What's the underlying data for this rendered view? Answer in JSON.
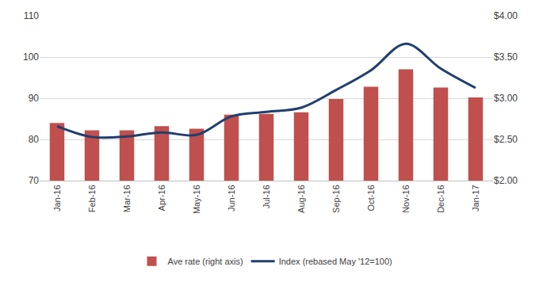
{
  "chart_data": {
    "type": "bar",
    "categories": [
      "Jan-16",
      "Feb-16",
      "Mar-16",
      "Apr-16",
      "May-16",
      "Jun-16",
      "Jul-16",
      "Aug-16",
      "Sep-16",
      "Oct-16",
      "Nov-16",
      "Dec-16",
      "Jan-17"
    ],
    "series": [
      {
        "name": "Ave rate (right axis)",
        "type": "bar",
        "axis": "y2",
        "color": "#c0504d",
        "values": [
          2.7,
          2.61,
          2.61,
          2.66,
          2.63,
          2.8,
          2.81,
          2.83,
          2.99,
          3.14,
          3.35,
          3.13,
          3.01
        ]
      },
      {
        "name": "Index (rebased May '12=100)",
        "type": "line",
        "line_style": "smooth",
        "color": "#1f3f6e",
        "values": [
          83.2,
          80.6,
          80.7,
          81.7,
          81.1,
          85.6,
          86.7,
          87.7,
          92.0,
          96.8,
          103.2,
          97.2,
          92.5
        ]
      }
    ],
    "ylim": [
      70,
      110
    ],
    "yticks": [
      70,
      80,
      90,
      100,
      110
    ],
    "y2lim": [
      2.0,
      4.0
    ],
    "y2ticks": [
      {
        "value": 2.0,
        "label": "$2.00"
      },
      {
        "value": 2.5,
        "label": "$2.50"
      },
      {
        "value": 3.0,
        "label": "$3.00"
      },
      {
        "value": 3.5,
        "label": "$3.50"
      },
      {
        "value": 4.0,
        "label": "$4.00"
      }
    ],
    "grid": true,
    "legend": "bottom"
  }
}
